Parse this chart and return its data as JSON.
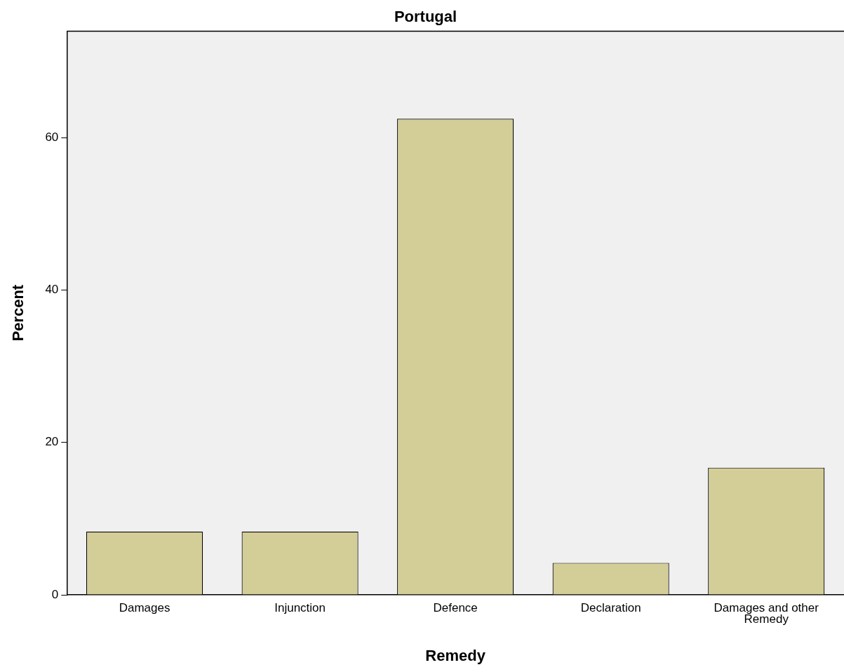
{
  "chart_data": {
    "type": "bar",
    "title": "Portugal",
    "xlabel": "Remedy",
    "ylabel": "Percent",
    "categories": [
      "Damages",
      "Injunction",
      "Defence",
      "Declaration",
      "Damages and other\nRemedy"
    ],
    "values": [
      8.3,
      8.3,
      62.5,
      4.2,
      16.7
    ],
    "color": "#d3cd98",
    "ylim": [
      0,
      74
    ],
    "yticks": [
      0,
      20,
      40,
      60
    ],
    "grid": false,
    "legend": false
  }
}
